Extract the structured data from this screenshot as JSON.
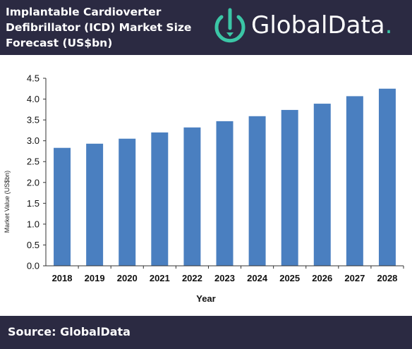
{
  "header": {
    "title_lines": [
      "Implantable Cardioverter",
      "Defibrillator (ICD) Market Size",
      "Forecast (US$bn)"
    ],
    "logo": {
      "brand": "GlobalData",
      "dot": ".",
      "accent_color": "#3bc6a6"
    }
  },
  "chart_data": {
    "type": "bar",
    "categories": [
      "2018",
      "2019",
      "2020",
      "2021",
      "2022",
      "2023",
      "2024",
      "2025",
      "2026",
      "2027",
      "2028"
    ],
    "values": [
      2.83,
      2.93,
      3.05,
      3.2,
      3.32,
      3.47,
      3.59,
      3.74,
      3.89,
      4.07,
      4.25
    ],
    "xlabel": "Year",
    "ylabel": "Market Value (US$bn)",
    "ylim": [
      0,
      4.5
    ],
    "yticks": [
      "0.0",
      "0.5",
      "1.0",
      "1.5",
      "2.0",
      "2.5",
      "3.0",
      "3.5",
      "4.0",
      "4.5"
    ],
    "grid": false,
    "legend": "none",
    "bar_color": "#4a7fc0"
  },
  "footer": {
    "source": "Source: GlobalData"
  },
  "colors": {
    "header_bg": "#2b2a42",
    "text": "#ffffff"
  }
}
